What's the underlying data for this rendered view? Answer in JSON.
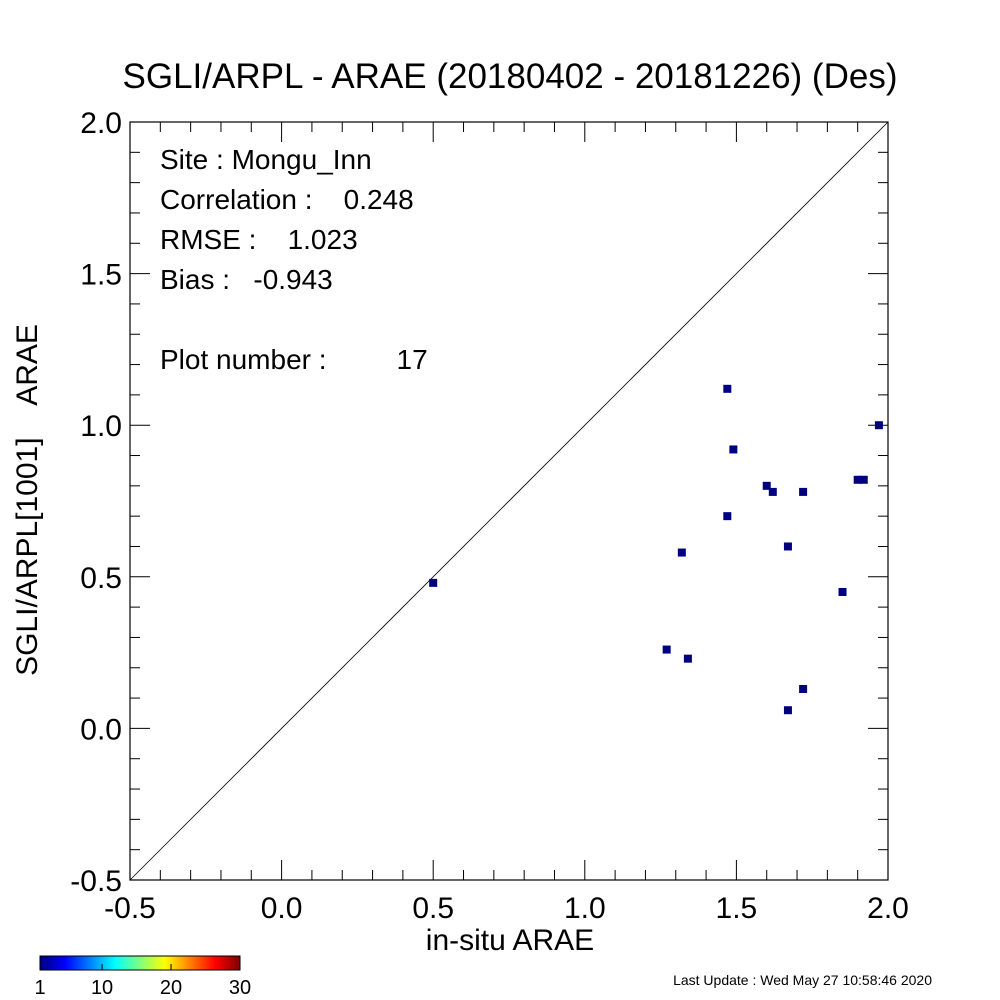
{
  "chart_data": {
    "type": "scatter",
    "title": "SGLI/ARPL - ARAE (20180402 - 20181226) (Des)",
    "xlabel": "in-situ ARAE",
    "ylabel": "SGLI/ARPL[1001]    ARAE",
    "xlim": [
      -0.5,
      2.0
    ],
    "ylim": [
      -0.5,
      2.0
    ],
    "xticks": [
      "-0.5",
      "0.0",
      "0.5",
      "1.0",
      "1.5",
      "2.0"
    ],
    "yticks": [
      "-0.5",
      "0.0",
      "0.5",
      "1.0",
      "1.5",
      "2.0"
    ],
    "tick_values": [
      -0.5,
      0.0,
      0.5,
      1.0,
      1.5,
      2.0
    ],
    "reference_line": "1:1",
    "grid": false,
    "point_color": "#00007f",
    "annotations": {
      "site": "Site : Mongu_Inn",
      "correlation": "Correlation :    0.248",
      "rmse": "RMSE :    1.023",
      "bias": "Bias :   -0.943",
      "plot_number": "Plot number :         17"
    },
    "points": [
      {
        "x": 0.5,
        "y": 0.48
      },
      {
        "x": 1.27,
        "y": 0.26
      },
      {
        "x": 1.32,
        "y": 0.58
      },
      {
        "x": 1.34,
        "y": 0.23
      },
      {
        "x": 1.47,
        "y": 1.12
      },
      {
        "x": 1.47,
        "y": 0.7
      },
      {
        "x": 1.49,
        "y": 0.92
      },
      {
        "x": 1.6,
        "y": 0.8
      },
      {
        "x": 1.62,
        "y": 0.78
      },
      {
        "x": 1.67,
        "y": 0.6
      },
      {
        "x": 1.67,
        "y": 0.06
      },
      {
        "x": 1.72,
        "y": 0.78
      },
      {
        "x": 1.72,
        "y": 0.13
      },
      {
        "x": 1.85,
        "y": 0.45
      },
      {
        "x": 1.9,
        "y": 0.82
      },
      {
        "x": 1.92,
        "y": 0.82
      },
      {
        "x": 1.97,
        "y": 1.0
      }
    ],
    "colorbar": {
      "ticks": [
        "1",
        "10",
        "20",
        "30"
      ],
      "tick_values": [
        1,
        10,
        20,
        30
      ],
      "range": [
        1,
        30
      ]
    }
  },
  "footer": {
    "last_update": "Last Update : Wed May 27 10:58:46 2020"
  }
}
